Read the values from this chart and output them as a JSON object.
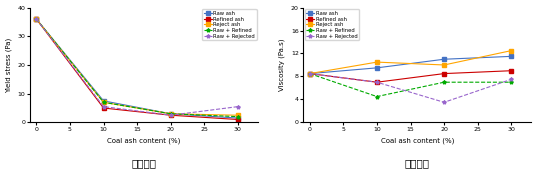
{
  "x": [
    0,
    10,
    20,
    30
  ],
  "yield_stress": {
    "Raw ash": [
      36,
      7.5,
      3.0,
      1.5
    ],
    "Refined ash": [
      36,
      5.0,
      2.5,
      1.0
    ],
    "Reject ash": [
      36,
      7.0,
      3.0,
      2.5
    ],
    "Raw + Refined": [
      36,
      7.0,
      3.0,
      2.0
    ],
    "Raw + Rejected": [
      36,
      5.5,
      2.5,
      5.5
    ]
  },
  "viscosity": {
    "Raw ash": [
      8.5,
      9.5,
      11.0,
      11.5
    ],
    "Refined ash": [
      8.5,
      7.0,
      8.5,
      9.0
    ],
    "Reject ash": [
      8.5,
      10.5,
      10.0,
      12.5
    ],
    "Raw + Refined": [
      8.5,
      4.5,
      7.0,
      7.0
    ],
    "Raw + Rejected": [
      8.5,
      7.0,
      3.5,
      7.5
    ]
  },
  "colors": {
    "Raw ash": "#4472C4",
    "Refined ash": "#CC0000",
    "Reject ash": "#FFA500",
    "Raw + Refined": "#00AA00",
    "Raw + Rejected": "#9966CC"
  },
  "linestyles": {
    "Raw ash": "-",
    "Refined ash": "-",
    "Reject ash": "-",
    "Raw + Refined": "--",
    "Raw + Rejected": "--"
  },
  "markers": {
    "Raw ash": "s",
    "Refined ash": "s",
    "Reject ash": "s",
    "Raw + Refined": "*",
    "Raw + Rejected": "*"
  },
  "ylabel_left": "Yield stress (Pa)",
  "ylabel_right": "Viscosity (Pa.s)",
  "xlabel": "Coal ash content (%)",
  "label_left": "항복응력",
  "label_right": "소성점도",
  "ylim_left": [
    0,
    40
  ],
  "ylim_right": [
    0,
    20
  ],
  "yticks_left": [
    0,
    10,
    20,
    30,
    40
  ],
  "yticks_right": [
    0,
    4,
    8,
    12,
    16,
    20
  ],
  "xlim": [
    -1,
    33
  ],
  "xticks": [
    0,
    5,
    10,
    15,
    20,
    25,
    30
  ]
}
